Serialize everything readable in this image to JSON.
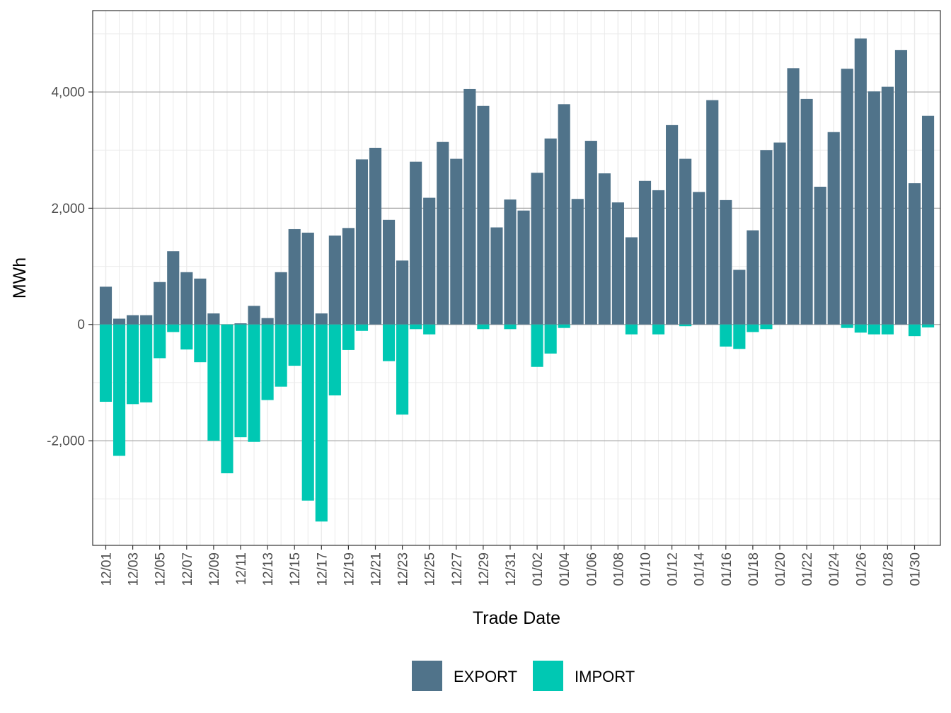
{
  "chart_data": {
    "type": "bar",
    "stacked": true,
    "title": "",
    "xlabel": "Trade Date",
    "ylabel": "MWh",
    "ylim": [
      -3800,
      5400
    ],
    "y_ticks": [
      -2000,
      0,
      2000,
      4000
    ],
    "y_tick_labels": [
      "-2,000",
      "0",
      "2,000",
      "4,000"
    ],
    "grid": true,
    "legend_position": "bottom",
    "categories": [
      "12/01",
      "12/02",
      "12/03",
      "12/04",
      "12/05",
      "12/06",
      "12/07",
      "12/08",
      "12/09",
      "12/10",
      "12/11",
      "12/12",
      "12/13",
      "12/14",
      "12/15",
      "12/16",
      "12/17",
      "12/18",
      "12/19",
      "12/20",
      "12/21",
      "12/22",
      "12/23",
      "12/24",
      "12/25",
      "12/26",
      "12/27",
      "12/28",
      "12/29",
      "12/30",
      "12/31",
      "01/01",
      "01/02",
      "01/03",
      "01/04",
      "01/05",
      "01/06",
      "01/07",
      "01/08",
      "01/09",
      "01/10",
      "01/11",
      "01/12",
      "01/13",
      "01/14",
      "01/15",
      "01/16",
      "01/17",
      "01/18",
      "01/19",
      "01/20",
      "01/21",
      "01/22",
      "01/23",
      "01/24",
      "01/25",
      "01/26",
      "01/27",
      "01/28",
      "01/29",
      "01/30",
      "01/31"
    ],
    "x_tick_labels": [
      "12/01",
      "12/03",
      "12/05",
      "12/07",
      "12/09",
      "12/11",
      "12/13",
      "12/15",
      "12/17",
      "12/19",
      "12/21",
      "12/23",
      "12/25",
      "12/27",
      "12/29",
      "12/31",
      "01/02",
      "01/04",
      "01/06",
      "01/08",
      "01/10",
      "01/12",
      "01/14",
      "01/16",
      "01/18",
      "01/20",
      "01/22",
      "01/24",
      "01/26",
      "01/28",
      "01/30"
    ],
    "series": [
      {
        "name": "EXPORT",
        "color": "#50738a",
        "values": [
          650,
          100,
          160,
          160,
          730,
          1260,
          900,
          790,
          190,
          0,
          20,
          320,
          110,
          900,
          1640,
          1580,
          190,
          1530,
          1660,
          2840,
          3040,
          1800,
          1100,
          2800,
          2180,
          3140,
          2850,
          4050,
          3760,
          1670,
          2150,
          1960,
          2610,
          3200,
          3790,
          2160,
          3160,
          2600,
          2100,
          1500,
          2470,
          2310,
          3430,
          2850,
          2280,
          3860,
          2140,
          940,
          1620,
          3000,
          3130,
          4410,
          3880,
          2370,
          3310,
          4400,
          4920,
          4010,
          4090,
          4720,
          2430,
          3590
        ]
      },
      {
        "name": "IMPORT",
        "color": "#00c8b3",
        "values": [
          -1330,
          -2260,
          -1370,
          -1340,
          -580,
          -130,
          -430,
          -650,
          -2000,
          -2560,
          -1940,
          -2020,
          -1300,
          -1070,
          -710,
          -3030,
          -3390,
          -1220,
          -440,
          -110,
          0,
          -630,
          -1550,
          -80,
          -170,
          0,
          0,
          0,
          -80,
          0,
          -80,
          0,
          -730,
          -500,
          -60,
          0,
          0,
          0,
          0,
          -170,
          0,
          -170,
          0,
          -30,
          0,
          0,
          -380,
          -420,
          -130,
          -80,
          0,
          0,
          0,
          0,
          0,
          -60,
          -140,
          -170,
          -170,
          0,
          -200,
          -50
        ]
      }
    ]
  }
}
